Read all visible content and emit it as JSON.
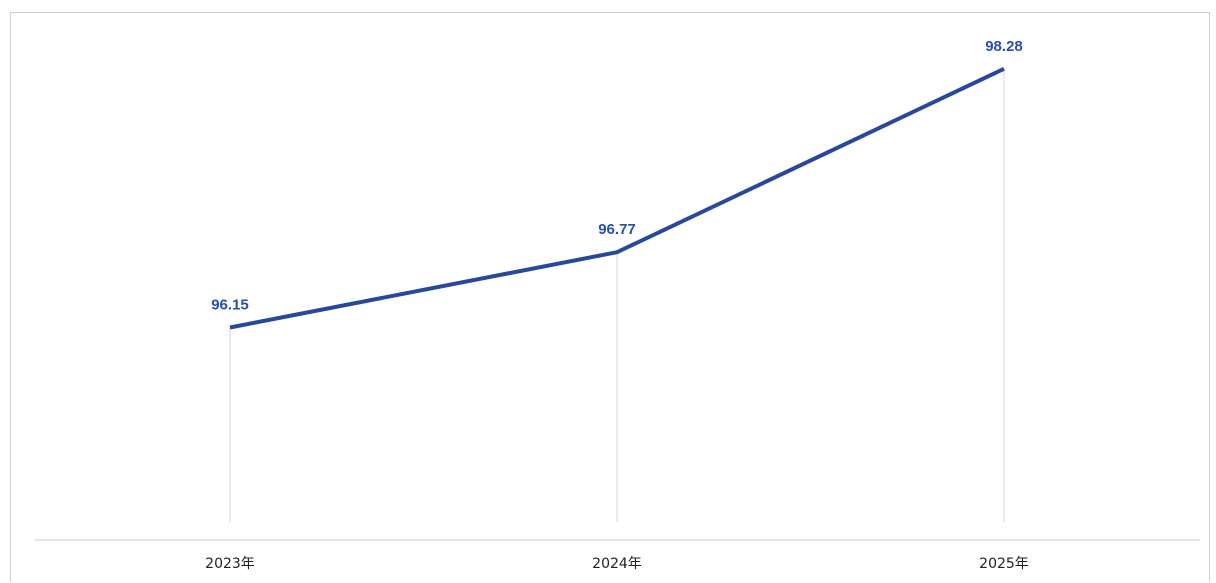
{
  "chart_data": {
    "type": "line",
    "categories": [
      "2023年",
      "2024年",
      "2025年"
    ],
    "series": [
      {
        "values": [
          96.15,
          96.77,
          98.28
        ]
      }
    ],
    "data_labels": [
      "96.15",
      "96.77",
      "98.28"
    ],
    "title": "",
    "xlabel": "",
    "ylabel": "",
    "ylim": [
      94.4,
      98.6
    ],
    "grid": false,
    "drop_lines": true,
    "line_color": "#27489b",
    "label_color": "#2a4fa8",
    "axis_color": "#c8c8c8",
    "drop_line_color": "#d6d6d6"
  }
}
